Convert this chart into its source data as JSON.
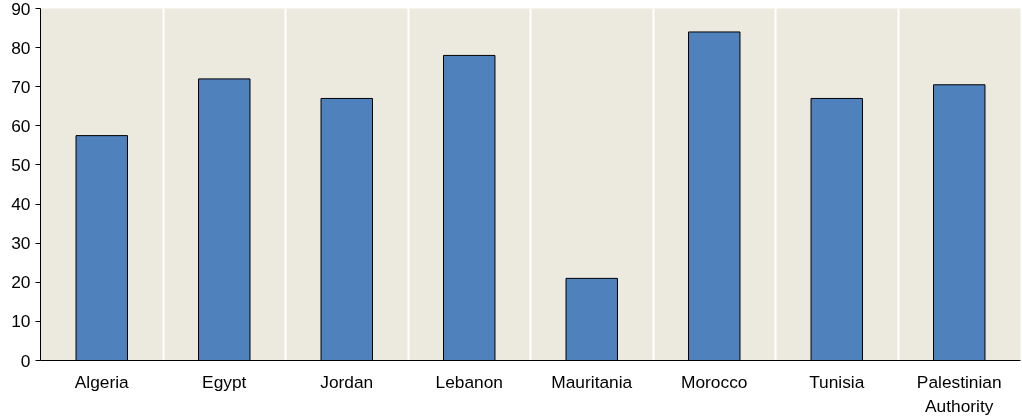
{
  "chart_data": {
    "type": "bar",
    "categories": [
      "Algeria",
      "Egypt",
      "Jordan",
      "Lebanon",
      "Mauritania",
      "Morocco",
      "Tunisia",
      "Palestinian Authority"
    ],
    "values": [
      57.5,
      72,
      67,
      78,
      21,
      84,
      67,
      70.5
    ],
    "color": "#4f81bd",
    "ylim": [
      0,
      90
    ],
    "yticks": [
      0,
      10,
      20,
      30,
      40,
      50,
      60,
      70,
      80,
      90
    ],
    "grid": "x"
  }
}
